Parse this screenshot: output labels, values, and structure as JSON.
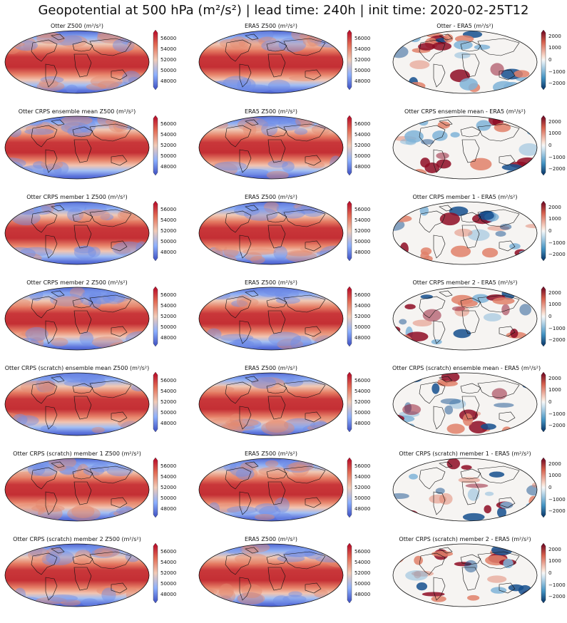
{
  "figure": {
    "title": "Geopotential at 500 hPa (m²/s²) | lead time: 240h | init time: 2020-02-25T12"
  },
  "colorbars": {
    "field": {
      "ticks": [
        "56000",
        "54000",
        "52000",
        "50000",
        "48000"
      ],
      "colormap": "coolwarm",
      "low_color": "#3b4cc0",
      "high_color": "#b40426"
    },
    "diff": {
      "ticks": [
        "2000",
        "1000",
        "0",
        "−1000",
        "−2000"
      ],
      "colormap": "RdBu_r",
      "low_color": "#053061",
      "high_color": "#67001f"
    }
  },
  "rows": [
    {
      "titles": [
        "Otter Z500 (m²/s²)",
        "ERA5 Z500 (m²/s²)",
        "Otter - ERA5 (m²/s²)"
      ]
    },
    {
      "titles": [
        "Otter CRPS ensemble mean Z500 (m²/s²)",
        "ERA5 Z500 (m²/s²)",
        "Otter CRPS ensemble mean - ERA5 (m²/s²)"
      ]
    },
    {
      "titles": [
        "Otter CRPS member 1 Z500 (m²/s²)",
        "ERA5 Z500 (m²/s²)",
        "Otter CRPS member 1 - ERA5 (m²/s²)"
      ]
    },
    {
      "titles": [
        "Otter CRPS member 2 Z500 (m²/s²)",
        "ERA5 Z500 (m²/s²)",
        "Otter CRPS member 2 - ERA5 (m²/s²)"
      ]
    },
    {
      "titles": [
        "Otter CRPS (scratch) ensemble mean Z500 (m²/s²)",
        "ERA5 Z500 (m²/s²)",
        "Otter CRPS (scratch) ensemble mean - ERA5 (m²/s²)"
      ]
    },
    {
      "titles": [
        "Otter CRPS (scratch) member 1 Z500 (m²/s²)",
        "ERA5 Z500 (m²/s²)",
        "Otter CRPS (scratch) member 1 - ERA5 (m²/s²)"
      ]
    },
    {
      "titles": [
        "Otter CRPS (scratch) member 2 Z500 (m²/s²)",
        "ERA5 Z500 (m²/s²)",
        "Otter CRPS (scratch) member 2 - ERA5 (m²/s²)"
      ]
    }
  ]
}
